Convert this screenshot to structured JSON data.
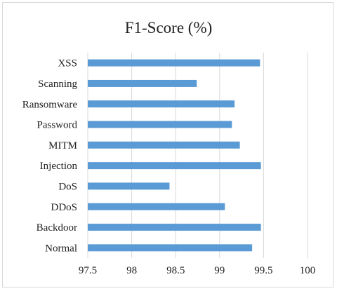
{
  "chart_data": {
    "type": "bar",
    "orientation": "horizontal",
    "title": "F1-Score (%)",
    "xlabel": "",
    "ylabel": "",
    "categories": [
      "XSS",
      "Scanning",
      "Ransomware",
      "Password",
      "MITM",
      "Injection",
      "DoS",
      "DDoS",
      "Backdoor",
      "Normal"
    ],
    "values": [
      99.46,
      98.74,
      99.17,
      99.14,
      99.23,
      99.47,
      98.43,
      99.06,
      99.47,
      99.37
    ],
    "xlim": [
      97.5,
      100
    ],
    "xticks": [
      "97.5",
      "98",
      "98.5",
      "99",
      "99.5",
      "100"
    ],
    "xtick_values": [
      97.5,
      98,
      98.5,
      99,
      99.5,
      100
    ],
    "grid": "vertical",
    "legend": "none",
    "bar_color": "#5b9bd5",
    "grid_color": "#d9d9d9"
  }
}
